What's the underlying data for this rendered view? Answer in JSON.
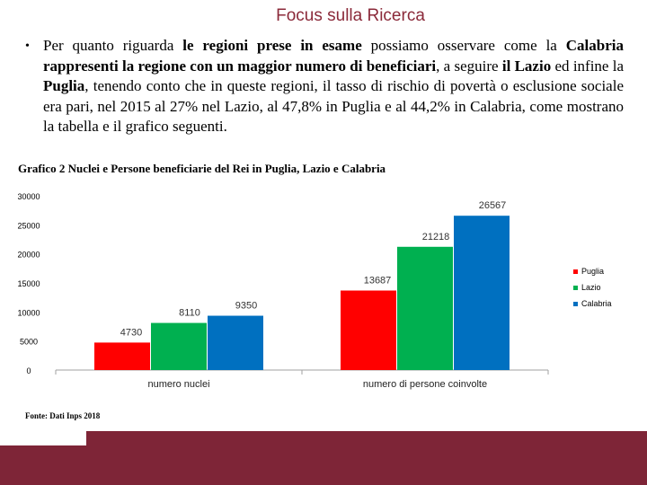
{
  "header": {
    "title": "Focus sulla Ricerca"
  },
  "paragraph": {
    "bullet": "•",
    "parts": [
      {
        "text": "Per quanto riguarda ",
        "bold": false
      },
      {
        "text": "le regioni prese in esame",
        "bold": true
      },
      {
        "text": " possiamo osservare come la ",
        "bold": false
      },
      {
        "text": "Calabria rappresenti la regione con un maggior numero di beneficiari",
        "bold": true
      },
      {
        "text": ", a seguire ",
        "bold": false
      },
      {
        "text": "il Lazio",
        "bold": true
      },
      {
        "text": " ed infine la ",
        "bold": false
      },
      {
        "text": "Puglia",
        "bold": true
      },
      {
        "text": ", tenendo conto che in queste regioni, il tasso di rischio di povertà o esclusione sociale era pari, nel 2015 al 27% nel Lazio, al 47,8% in Puglia e al 44,2% in Calabria, come mostrano la tabella e il grafico seguenti.",
        "bold": false
      }
    ]
  },
  "chart_caption": "Grafico 2 Nuclei e Persone beneficiarie del Rei in Puglia, Lazio e Calabria",
  "source": "Fonte: Dati Inps 2018",
  "chart_data": {
    "type": "bar",
    "categories": [
      "numero nuclei",
      "numero di persone coinvolte"
    ],
    "series": [
      {
        "name": "Puglia",
        "values": [
          4730,
          13687
        ],
        "color": "#ff0000"
      },
      {
        "name": "Lazio",
        "values": [
          8110,
          21218
        ],
        "color": "#00b050"
      },
      {
        "name": "Calabria",
        "values": [
          9350,
          26567
        ],
        "color": "#0070c0"
      }
    ],
    "yticks": [
      0,
      5000,
      10000,
      15000,
      20000,
      25000,
      30000
    ],
    "ylim": [
      0,
      30000
    ],
    "grid": false,
    "legend": "right",
    "data_labels": true
  },
  "theme": {
    "accent": "#7e2537",
    "title_color": "#8b2a3a"
  }
}
